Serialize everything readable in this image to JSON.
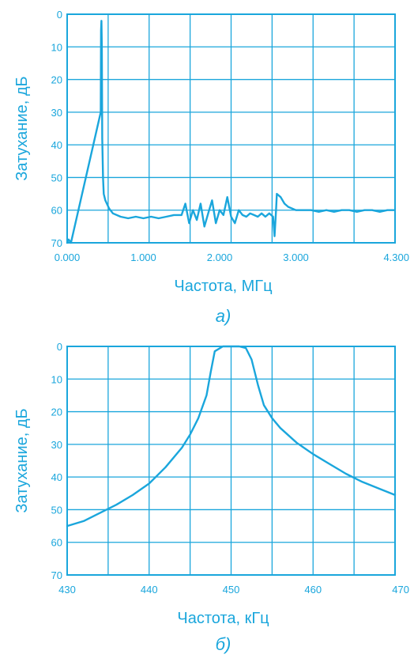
{
  "colors": {
    "primary": "#1aa6dc",
    "background": "#ffffff"
  },
  "chart_data": [
    {
      "type": "line",
      "panel_label": "а)",
      "xlabel": "Частота, МГц",
      "ylabel": "Затухание, дБ",
      "xlim": [
        0,
        4.3
      ],
      "ylim": [
        70,
        0
      ],
      "x_tick_values": [
        0,
        1.0,
        2.0,
        3.0,
        4.3
      ],
      "x_tick_labels": [
        "0.000",
        "1.000",
        "2.000",
        "3.000",
        "4.300"
      ],
      "y_tick_values": [
        0,
        10,
        20,
        30,
        40,
        50,
        60,
        70
      ],
      "y_tick_labels": [
        "0",
        "10",
        "20",
        "30",
        "40",
        "50",
        "60",
        "70"
      ],
      "x_grid": [
        0,
        0.5375,
        1.075,
        1.6125,
        2.15,
        2.6875,
        3.225,
        3.7625,
        4.3
      ],
      "grid": true,
      "series": [
        {
          "x": [
            0.0,
            0.02,
            0.05,
            0.44,
            0.445,
            0.45,
            0.455,
            0.46,
            0.47,
            0.48,
            0.5,
            0.55,
            0.6,
            0.7,
            0.8,
            0.9,
            1.0,
            1.1,
            1.2,
            1.3,
            1.4,
            1.5,
            1.55,
            1.6,
            1.65,
            1.7,
            1.75,
            1.8,
            1.85,
            1.9,
            1.95,
            2.0,
            2.05,
            2.1,
            2.15,
            2.2,
            2.25,
            2.3,
            2.35,
            2.4,
            2.45,
            2.5,
            2.55,
            2.6,
            2.65,
            2.7,
            2.72,
            2.74,
            2.75,
            2.8,
            2.85,
            2.9,
            3.0,
            3.1,
            3.2,
            3.3,
            3.4,
            3.5,
            3.6,
            3.7,
            3.8,
            3.9,
            4.0,
            4.1,
            4.2,
            4.3
          ],
          "y": [
            70,
            69,
            70,
            30,
            5,
            2,
            10,
            38,
            50,
            55,
            57,
            59.5,
            61,
            62,
            62.5,
            62,
            62.5,
            62,
            62.5,
            62,
            61.5,
            61.5,
            58,
            64,
            60,
            63,
            58,
            65,
            61,
            57,
            64,
            60,
            61.5,
            56,
            62,
            64,
            60,
            61.5,
            62,
            61,
            61.5,
            62,
            61,
            62,
            61,
            62,
            68,
            60,
            55,
            56,
            58,
            59,
            60,
            60,
            60,
            60.5,
            60,
            60.5,
            60,
            60,
            60.5,
            60,
            60,
            60.5,
            60,
            60
          ]
        }
      ]
    },
    {
      "type": "line",
      "panel_label": "б)",
      "xlabel": "Частота, кГц",
      "ylabel": "Затухание, дБ",
      "xlim": [
        430,
        470
      ],
      "ylim": [
        70,
        0
      ],
      "x_tick_values": [
        430,
        440,
        450,
        460,
        470
      ],
      "x_tick_labels": [
        "430",
        "440",
        "450",
        "460",
        "470"
      ],
      "y_tick_values": [
        0,
        10,
        20,
        30,
        40,
        50,
        60,
        70
      ],
      "y_tick_labels": [
        "0",
        "10",
        "20",
        "30",
        "40",
        "50",
        "60",
        "70"
      ],
      "x_grid": [
        430,
        435,
        440,
        445,
        450,
        455,
        460,
        465,
        470
      ],
      "grid": true,
      "series": [
        {
          "x": [
            430,
            432,
            434,
            436,
            438,
            440,
            442,
            444,
            445,
            446,
            447,
            447.5,
            448,
            449,
            450,
            451,
            451.8,
            452.5,
            453.3,
            454,
            455,
            456,
            458,
            460,
            462,
            464,
            466,
            468,
            470
          ],
          "y": [
            55,
            53.5,
            51,
            48.5,
            45.5,
            42,
            37,
            31,
            27,
            22,
            15,
            8,
            1.5,
            0,
            0,
            0,
            0.5,
            4,
            12,
            18,
            22,
            25,
            29.5,
            33,
            36,
            39,
            41.5,
            43.5,
            45.5
          ]
        }
      ]
    }
  ]
}
